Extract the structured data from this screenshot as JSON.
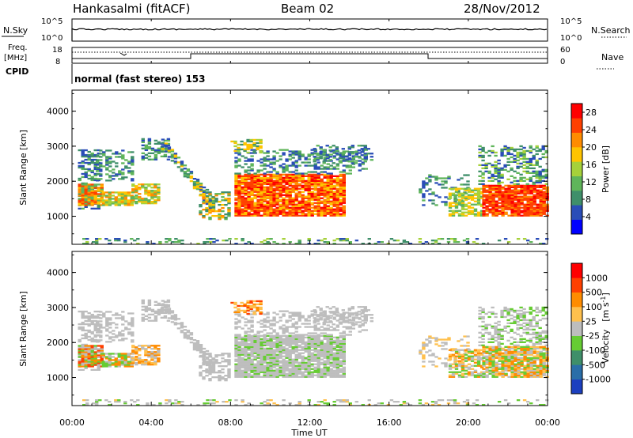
{
  "header": {
    "station": "Hankasalmi (fitACF)",
    "beam": "Beam 02",
    "date": "28/Nov/2012"
  },
  "status_panels": {
    "nsky_label": "N.Sky",
    "nsearch_label": "N.Search",
    "freq_label_line1": "Freq.",
    "freq_label_line2": "[MHz]",
    "nave_label": "Nave",
    "cpid_label": "CPID",
    "cpid_text": "normal (fast stereo) 153",
    "noise_ticks": [
      "10^5",
      "10^0"
    ],
    "freq_ticks": [
      "18",
      "8"
    ],
    "nave_ticks": [
      "60",
      "0"
    ]
  },
  "colors": {
    "power_scale": [
      "#0000ff",
      "#2a4db8",
      "#3f8f6a",
      "#5fb55a",
      "#a6d13a",
      "#ffc400",
      "#ff8c00",
      "#ff4000",
      "#ff0000"
    ],
    "velocity_scale": [
      "#1c3fbf",
      "#2a6ea8",
      "#3f8f6a",
      "#66cc33",
      "#bdbdbd",
      "#ffc04d",
      "#ff8c00",
      "#ff4000",
      "#ff0000"
    ]
  },
  "chart_data": [
    {
      "type": "heatmap",
      "name": "power",
      "title": "",
      "xlabel": "Time UT",
      "ylabel": "Slant Range [km]",
      "xlim": [
        "00:00",
        "24:00"
      ],
      "ylim": [
        200,
        4600
      ],
      "x_ticks": [
        "00:00",
        "04:00",
        "08:00",
        "12:00",
        "16:00",
        "20:00",
        "00:00"
      ],
      "y_ticks": [
        1000,
        2000,
        3000,
        4000
      ],
      "colorbar_label": "Power [dB]",
      "colorbar_ticks": [
        4,
        8,
        12,
        16,
        20,
        24,
        28
      ],
      "colorbar_range": [
        0,
        30
      ]
    },
    {
      "type": "heatmap",
      "name": "velocity",
      "title": "",
      "xlabel": "Time UT",
      "ylabel": "Slant Range [km]",
      "xlim": [
        "00:00",
        "24:00"
      ],
      "ylim": [
        200,
        4600
      ],
      "x_ticks": [
        "00:00",
        "04:00",
        "08:00",
        "12:00",
        "16:00",
        "20:00",
        "00:00"
      ],
      "y_ticks": [
        1000,
        2000,
        3000,
        4000
      ],
      "colorbar_label": "Velocity",
      "colorbar_unit": "[m s",
      "colorbar_unit_exp": "-1",
      "colorbar_unit_end": "]",
      "colorbar_ticks": [
        "1000",
        "500",
        "100",
        "25",
        "-25",
        "-100",
        "-500",
        "-1000"
      ]
    }
  ]
}
